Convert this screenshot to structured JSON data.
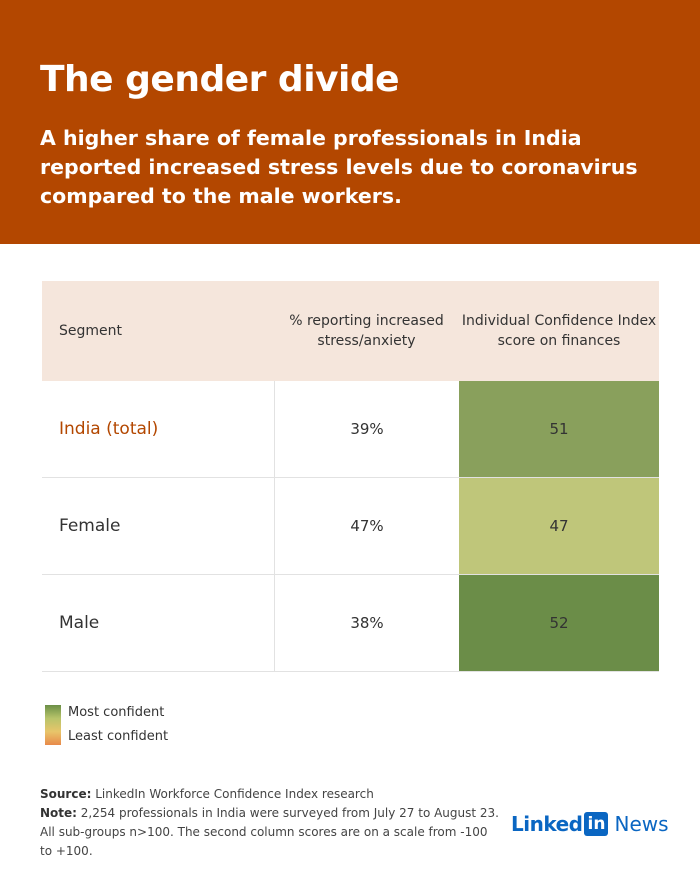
{
  "header": {
    "title": "The gender divide",
    "subtitle": "A higher share of female professionals in India reported increased stress levels due to coronavirus compared to the male workers."
  },
  "chart_data": {
    "type": "table",
    "columns": [
      "Segment",
      "% reporting increased stress/anxiety",
      "Individual Confidence Index score on finances"
    ],
    "rows": [
      {
        "segment": "India (total)",
        "stress": "39%",
        "confidence": "51",
        "confidence_value": 51,
        "cell_color": "#89a05c"
      },
      {
        "segment": "Female",
        "stress": "47%",
        "confidence": "47",
        "confidence_value": 47,
        "cell_color": "#bfc67a"
      },
      {
        "segment": "Male",
        "stress": "38%",
        "confidence": "52",
        "confidence_value": 52,
        "cell_color": "#6b8d48"
      }
    ]
  },
  "legend": {
    "most": "Most confident",
    "least": "Least confident",
    "colors": [
      "#6b8f47",
      "#b8c46a",
      "#e8c56a",
      "#e88a4a"
    ]
  },
  "footer": {
    "source_label": "Source:",
    "source_text": "LinkedIn Workforce Confidence Index research",
    "note_label": "Note:",
    "note_text": "2,254 professionals in India were surveyed from July 27 to August 23. All sub-groups n>100. The second column scores are on a scale from -100 to +100."
  },
  "logo": {
    "linked": "Linked",
    "in": "in",
    "news": "News"
  },
  "colors": {
    "header_bg": "#b34700",
    "table_header_bg": "#f5e6dc",
    "accent": "#b34700"
  }
}
